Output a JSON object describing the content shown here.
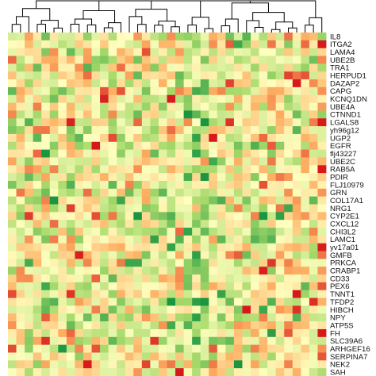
{
  "chart_data": {
    "type": "heatmap",
    "title": "",
    "xlabel": "",
    "ylabel": "",
    "dendrogram": "top",
    "color_scale": {
      "low": "#1a9641",
      "mid_low": "#a6d96a",
      "mid": "#ffffbf",
      "mid_high": "#fdae61",
      "high": "#d7191c"
    },
    "n_columns": 38,
    "rows": [
      "IL8",
      "ITGA2",
      "LAMA4",
      "UBE2B",
      "TRA1",
      "HERPUD1",
      "DAZAP2",
      "CAPG",
      "KCNQ1DN",
      "UBE4A",
      "CTNND1",
      "LGALS8",
      "yh96g12",
      "UGP2",
      "EGFR",
      "flj43227",
      "UBE2C",
      "RAB5A",
      "PDIR",
      "FLJ10979",
      "GRN",
      "COL17A1",
      "NRG1",
      "CYP2E1",
      "CXCL12",
      "CHI3L2",
      "LAMC1",
      "yv17a01",
      "GMFB",
      "PRKCA",
      "CRABP1",
      "CD33",
      "PEX6",
      "TNNT1",
      "TFDP2",
      "HIBCH",
      "NPY",
      "ATP5S",
      "FH",
      "SLC39A6",
      "ARHGEF16",
      "SERPINA7",
      "NEK2",
      "SAH"
    ],
    "value_range": [
      -2,
      2
    ]
  }
}
